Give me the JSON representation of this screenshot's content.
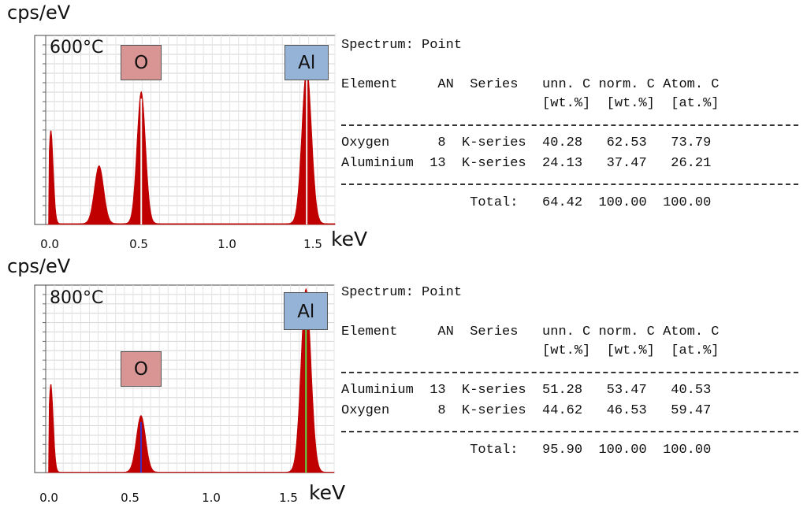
{
  "chart_data": [
    {
      "type": "area",
      "panel_label": "600°C",
      "ylabel": "cps/eV",
      "xlabel": "keV",
      "x_ticks": [
        "0.0",
        "0.5",
        "1.0",
        "1.5"
      ],
      "xlim": [
        -0.03,
        1.65
      ],
      "ylim": [
        0,
        21
      ],
      "fill_color": "#c00000",
      "peaks": [
        {
          "center": 0.0,
          "height": 10.5,
          "width": 0.014
        },
        {
          "center": 0.28,
          "height": 6.5,
          "width": 0.027
        },
        {
          "center": 0.525,
          "height": 14.8,
          "width": 0.025
        },
        {
          "center": 1.486,
          "height": 17.5,
          "width": 0.028
        }
      ],
      "elements": [
        {
          "symbol": "O",
          "energy": 0.525,
          "box_class": "elO"
        },
        {
          "symbol": "Al",
          "energy": 1.486,
          "box_class": "elAl"
        }
      ]
    },
    {
      "type": "area",
      "panel_label": "800°C",
      "ylabel": "cps/eV",
      "xlabel": "keV",
      "x_ticks": [
        "0.0",
        "0.5",
        "1.0",
        "1.5"
      ],
      "xlim": [
        -0.03,
        1.65
      ],
      "ylim": [
        0,
        41
      ],
      "fill_color": "#c00000",
      "peaks": [
        {
          "center": 0.0,
          "height": 19.5,
          "width": 0.014
        },
        {
          "center": 0.525,
          "height": 12.5,
          "width": 0.027
        },
        {
          "center": 1.486,
          "height": 40.5,
          "width": 0.029
        }
      ],
      "elements": [
        {
          "symbol": "O",
          "energy": 0.525,
          "box_class": "elO"
        },
        {
          "symbol": "Al",
          "energy": 1.486,
          "box_class": "elAl"
        }
      ]
    }
  ],
  "tables": [
    {
      "spectrum_line": "Spectrum: Point",
      "header1": "Element     AN  Series   unn. C norm. C Atom. C",
      "header2": "                         [wt.%]  [wt.%]  [at.%]",
      "rows": [
        "Oxygen      8  K-series  40.28   62.53   73.79",
        "Aluminium  13  K-series  24.13   37.47   26.21"
      ],
      "total": "                Total:   64.42  100.00  100.00"
    },
    {
      "spectrum_line": "Spectrum: Point",
      "header1": "Element     AN  Series   unn. C norm. C Atom. C",
      "header2": "                         [wt.%]  [wt.%]  [at.%]",
      "rows": [
        "Aluminium  13  K-series  51.28   53.47   40.53",
        "Oxygen      8  K-series  44.62   46.53   59.47"
      ],
      "total": "                Total:   95.90  100.00  100.00"
    }
  ]
}
